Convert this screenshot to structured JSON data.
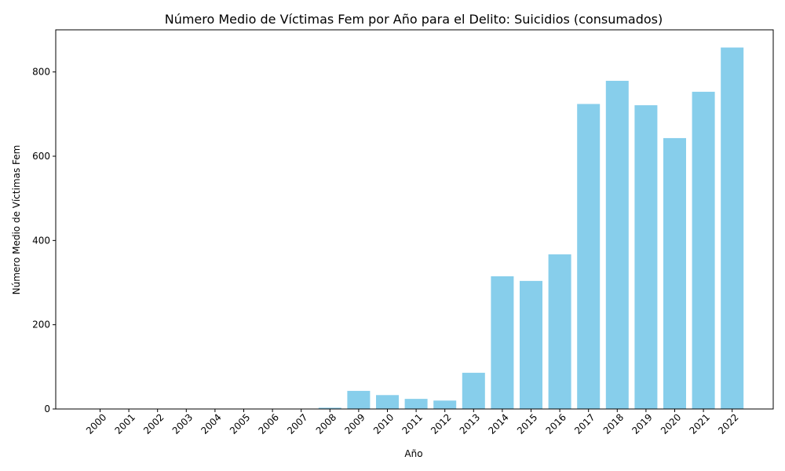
{
  "chart_data": {
    "type": "bar",
    "title": "Número Medio de Víctimas Fem por Año para el Delito: Suicidios (consumados)",
    "xlabel": "Año",
    "ylabel": "Número Medio de Víctimas Fem",
    "categories": [
      "2000",
      "2001",
      "2002",
      "2003",
      "2004",
      "2005",
      "2006",
      "2007",
      "2008",
      "2009",
      "2010",
      "2011",
      "2012",
      "2013",
      "2014",
      "2015",
      "2016",
      "2017",
      "2018",
      "2019",
      "2020",
      "2021",
      "2022"
    ],
    "values": [
      0,
      0,
      0,
      0,
      0,
      0,
      0,
      0,
      3,
      43,
      33,
      24,
      20,
      86,
      315,
      304,
      367,
      724,
      779,
      721,
      643,
      753,
      858
    ],
    "ylim": [
      0,
      900
    ],
    "yticks": [
      0,
      200,
      400,
      600,
      800
    ],
    "bar_color": "#87CEEB",
    "grid": false
  }
}
